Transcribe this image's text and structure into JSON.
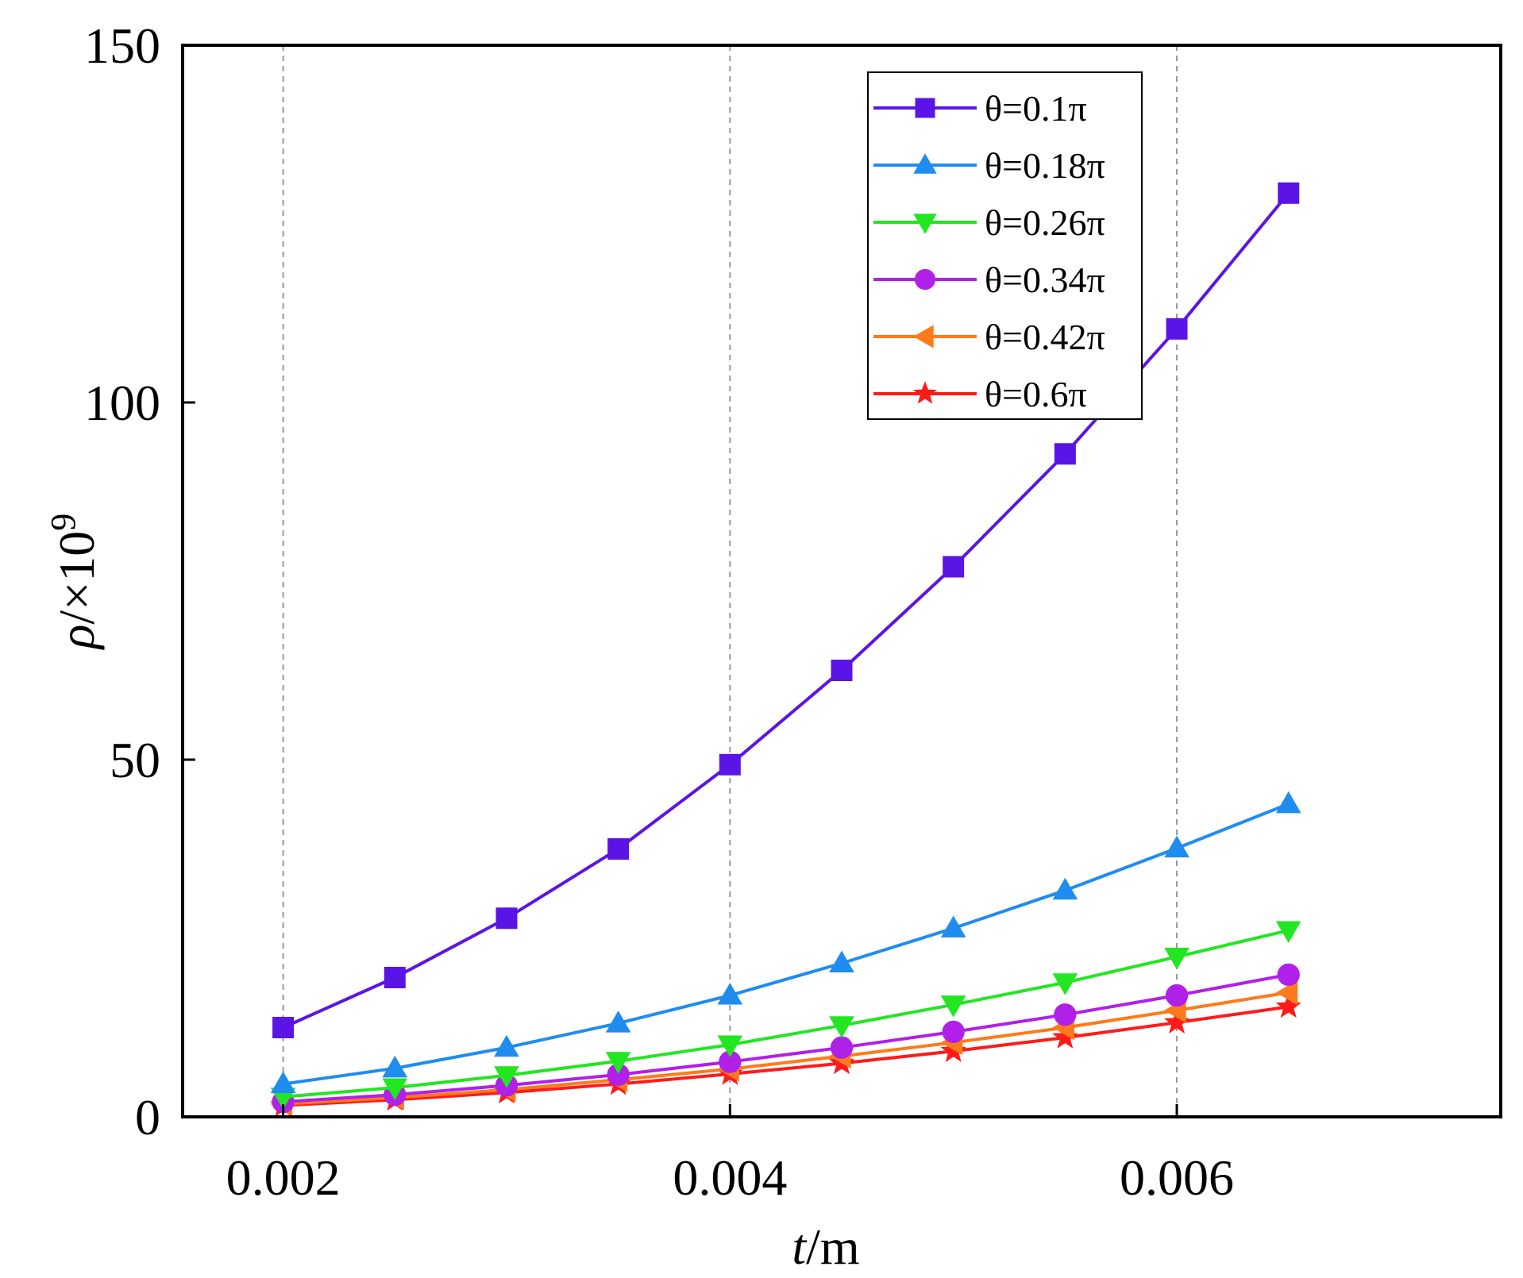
{
  "chart_data": {
    "type": "line",
    "title": "",
    "xlabel": {
      "var": "t",
      "unit": "/m"
    },
    "ylabel": {
      "var": "ρ",
      "unit": "/×10",
      "exp": "9"
    },
    "xlim": [
      0.00155,
      0.00745
    ],
    "ylim": [
      0,
      150
    ],
    "xticks": [
      0.002,
      0.004,
      0.006
    ],
    "xtick_labels": [
      "0.002",
      "0.004",
      "0.006"
    ],
    "yticks": [
      0,
      50,
      100,
      150
    ],
    "ytick_labels": [
      "0",
      "50",
      "100",
      "150"
    ],
    "grid": "vertical dashed",
    "legend_position": "top-right",
    "x": [
      0.002,
      0.0025,
      0.003,
      0.0035,
      0.004,
      0.0045,
      0.005,
      0.0055,
      0.006,
      0.0065
    ],
    "series": [
      {
        "name": "θ=0.1π",
        "color": "#5b14e6",
        "marker": "square",
        "values": [
          12.5,
          19.5,
          27.8,
          37.5,
          49.3,
          62.5,
          77.0,
          92.8,
          110.3,
          129.3
        ]
      },
      {
        "name": "θ=0.18π",
        "color": "#1f8cf0",
        "marker": "triangle-up",
        "values": [
          4.6,
          6.8,
          9.7,
          13.1,
          17.0,
          21.5,
          26.4,
          31.7,
          37.6,
          43.8
        ]
      },
      {
        "name": "θ=0.26π",
        "color": "#22e622",
        "marker": "triangle-down",
        "values": [
          2.8,
          4.1,
          5.8,
          7.8,
          10.1,
          12.8,
          15.7,
          18.8,
          22.4,
          26.1
        ]
      },
      {
        "name": "θ=0.34π",
        "color": "#b020e8",
        "marker": "circle",
        "values": [
          2.1,
          3.1,
          4.4,
          5.9,
          7.7,
          9.7,
          11.9,
          14.3,
          17.0,
          19.9
        ]
      },
      {
        "name": "θ=0.42π",
        "color": "#ff7a1a",
        "marker": "triangle-left",
        "values": [
          1.8,
          2.7,
          3.8,
          5.2,
          6.7,
          8.5,
          10.4,
          12.5,
          14.9,
          17.4
        ]
      },
      {
        "name": "θ=0.6π",
        "color": "#ff1a1a",
        "marker": "star",
        "values": [
          1.6,
          2.4,
          3.4,
          4.6,
          6.0,
          7.5,
          9.2,
          11.1,
          13.2,
          15.4
        ]
      }
    ]
  }
}
